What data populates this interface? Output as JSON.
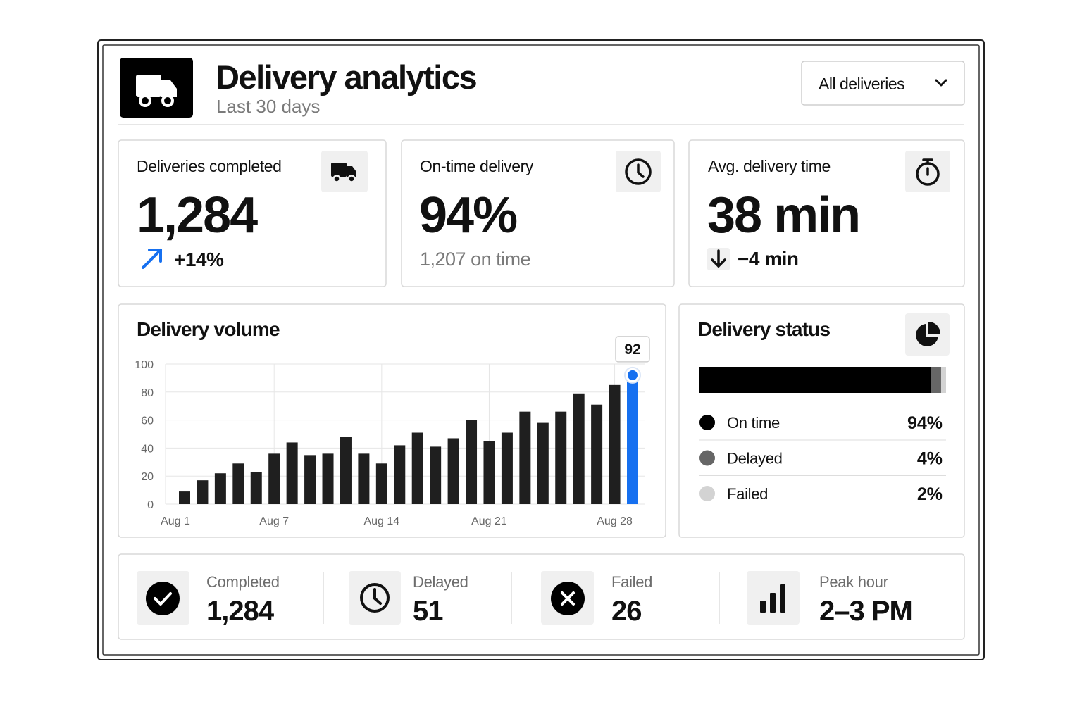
{
  "header": {
    "title": "Delivery analytics",
    "subtitle": "Last 30 days",
    "filter": "All deliveries"
  },
  "kpis": [
    {
      "label": "Deliveries completed",
      "value": "1,284",
      "change": "+14%"
    },
    {
      "label": "On-time delivery",
      "value": "94%",
      "note": "1,207 on time"
    },
    {
      "label": "Avg. delivery time",
      "value": "38 min",
      "change": "−4 min"
    }
  ],
  "chart_data": [
    {
      "type": "bar",
      "title": "Delivery volume",
      "categories": [
        "Aug 1",
        null,
        null,
        null,
        null,
        "Aug 7",
        null,
        null,
        null,
        null,
        null,
        "Aug 14",
        null,
        null,
        null,
        null,
        null,
        "Aug 21",
        null,
        null,
        null,
        null,
        null,
        null,
        "Aug 28",
        null
      ],
      "values": [
        9,
        17,
        22,
        29,
        23,
        36,
        44,
        35,
        36,
        48,
        36,
        29,
        42,
        51,
        41,
        47,
        60,
        45,
        51,
        66,
        58,
        66,
        79,
        71,
        85,
        92
      ],
      "colors": [
        "#1f1f1f",
        "#1f1f1f",
        "#1f1f1f",
        "#1f1f1f",
        "#1f1f1f",
        "#1f1f1f",
        "#1f1f1f",
        "#1f1f1f",
        "#1f1f1f",
        "#1f1f1f",
        "#1f1f1f",
        "#1f1f1f",
        "#1f1f1f",
        "#1f1f1f",
        "#1f1f1f",
        "#1f1f1f",
        "#1f1f1f",
        "#1f1f1f",
        "#1f1f1f",
        "#1f1f1f",
        "#1f1f1f",
        "#1f1f1f",
        "#1f1f1f",
        "#1f1f1f",
        "#1f1f1f",
        "#1670f0"
      ],
      "ylim": [
        0,
        100
      ],
      "yticks": [
        0,
        20,
        40,
        60,
        80,
        100
      ],
      "grid": true
    },
    {
      "type": "stacked_bar",
      "title": "Delivery status",
      "series": [
        {
          "name": "On time",
          "color": "#000000",
          "values": [
            94
          ]
        },
        {
          "name": "Delayed",
          "color": "#666666",
          "values": [
            4
          ]
        },
        {
          "name": "Failed",
          "color": "#d3d3d3",
          "values": [
            2
          ]
        }
      ],
      "value_labels": [
        "94%",
        "4%",
        "2%"
      ],
      "xlim": [
        0,
        100
      ]
    }
  ],
  "footer": [
    {
      "label": "Completed",
      "value": "1,284"
    },
    {
      "label": "Delayed",
      "value": "51"
    },
    {
      "label": "Failed",
      "value": "26"
    },
    {
      "label": "Peak hour",
      "value": "2–3 PM"
    }
  ]
}
